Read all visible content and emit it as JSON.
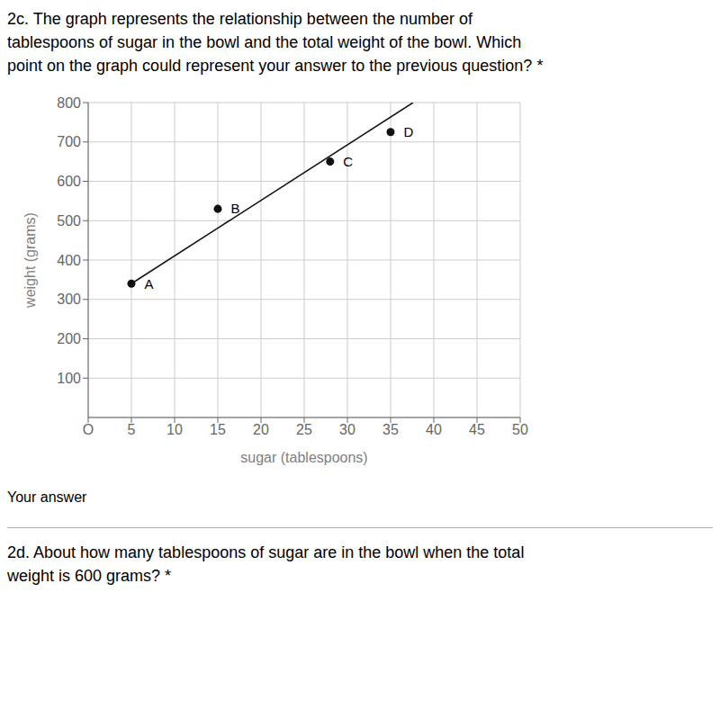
{
  "chart_data": {
    "type": "scatter",
    "title": [
      "2c. The graph represents the relationship between the number of",
      "tablespoons of sugar in the bowl and the total weight of the bowl. Which",
      "point on the graph could represent your answer to the previous question? *"
    ],
    "x_label": "sugar (tablespoons)",
    "y_label": "weight (grams)",
    "x": [
      5,
      15,
      28,
      35
    ],
    "values": [
      340,
      530,
      650,
      725
    ],
    "labels": [
      "A",
      "B",
      "C",
      "D"
    ],
    "line": {
      "x": [
        5,
        37.60099
      ],
      "values": [
        340,
        800
      ]
    },
    "color": "#111111",
    "xlim": [
      0,
      50
    ],
    "ylim": [
      0,
      800
    ],
    "xticks": [
      {
        "value": 0,
        "label": "O"
      },
      5,
      10,
      15,
      20,
      25,
      30,
      35,
      40,
      45,
      50
    ],
    "yticks": [
      100,
      200,
      300,
      400,
      500,
      600,
      700,
      800
    ],
    "grid": true,
    "annotations": [
      "Your answer",
      "2d. About how many tablespoons of sugar are in the bowl when the total",
      "weight is 600 grams? *"
    ]
  }
}
